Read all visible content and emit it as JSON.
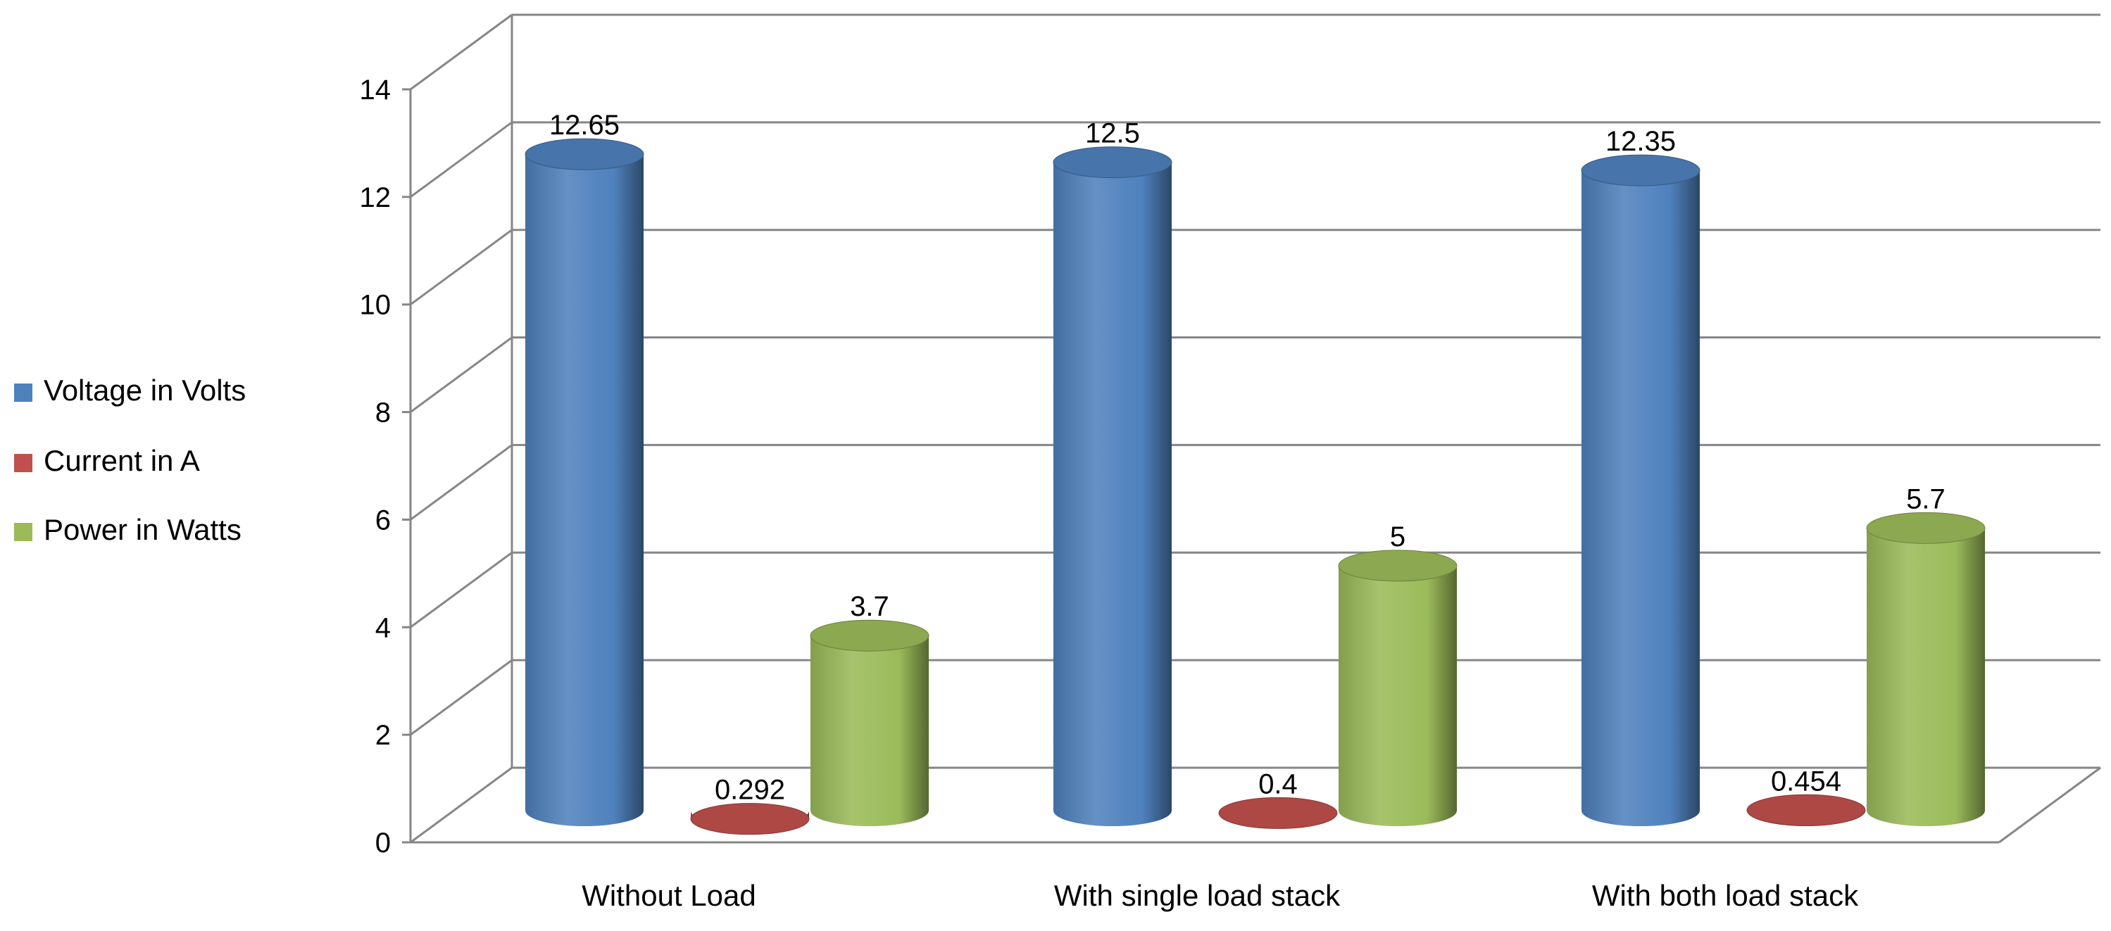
{
  "chart_data": {
    "type": "bar",
    "style": "3d-cylinder",
    "categories": [
      "Without Load",
      "With single load stack",
      "With both load stack"
    ],
    "series": [
      {
        "name": "Voltage in Volts",
        "color": "#4F81BD",
        "values": [
          12.65,
          12.5,
          12.35
        ],
        "labels": [
          "12.65",
          "12.5",
          "12.35"
        ]
      },
      {
        "name": "Current in A",
        "color": "#C0504D",
        "values": [
          0.292,
          0.4,
          0.454
        ],
        "labels": [
          "0.292",
          "0.4",
          "0.454"
        ]
      },
      {
        "name": "Power in Watts",
        "color": "#9BBB59",
        "values": [
          3.7,
          5,
          5.7
        ],
        "labels": [
          "3.7",
          "5",
          "5.7"
        ]
      }
    ],
    "y_ticks": [
      "0",
      "2",
      "4",
      "6",
      "8",
      "10",
      "12",
      "14"
    ],
    "ylim": [
      0,
      14
    ],
    "grid": true,
    "legend": "left"
  }
}
